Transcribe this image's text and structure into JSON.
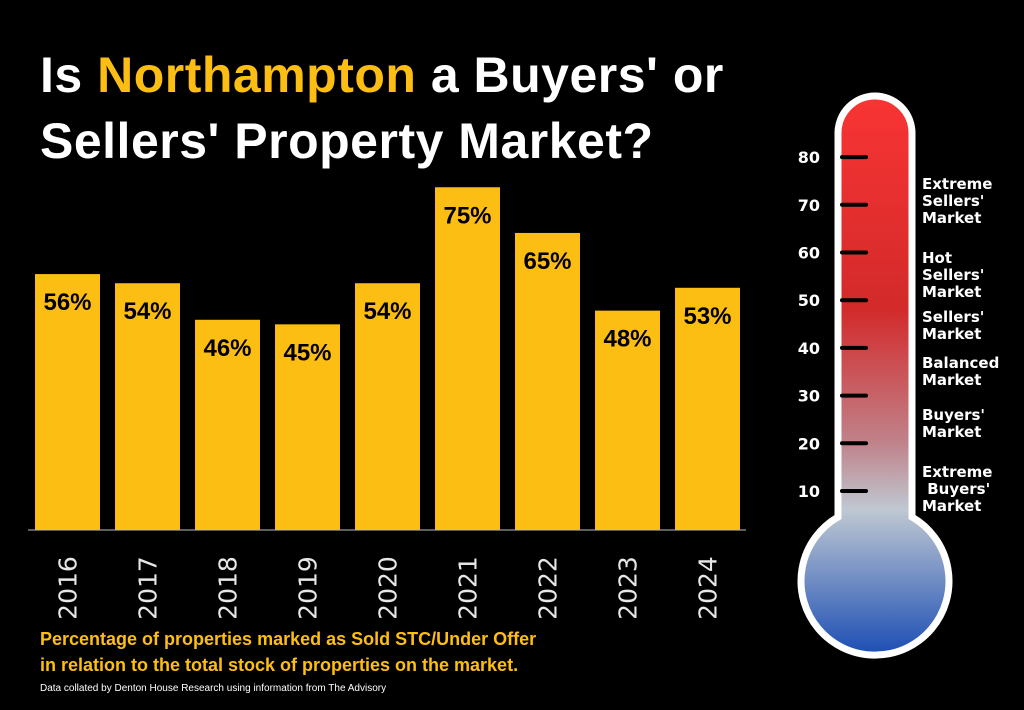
{
  "title": {
    "pre": "Is ",
    "highlight": "Northampton",
    "post1": " a Buyers' or",
    "line2": "Sellers' Property Market?"
  },
  "colors": {
    "bar": "#FDBE13",
    "highlight": "#FDBE13",
    "thermo_top": "#F93434",
    "thermo_mid": "#D32A2A",
    "thermo_light": "#BFC8D2",
    "thermo_bottom": "#1B4DB4"
  },
  "chart_data": {
    "type": "bar",
    "title": "Is Northampton a Buyers' or Sellers' Property Market?",
    "categories": [
      "2016",
      "2017",
      "2018",
      "2019",
      "2020",
      "2021",
      "2022",
      "2023",
      "2024"
    ],
    "values": [
      56,
      54,
      46,
      45,
      54,
      75,
      65,
      48,
      53
    ],
    "data_labels": [
      "56%",
      "54%",
      "46%",
      "45%",
      "54%",
      "75%",
      "65%",
      "48%",
      "53%"
    ],
    "xlabel": "",
    "ylabel": "Percentage of properties marked as Sold STC/Under Offer",
    "ylim": [
      0,
      75
    ],
    "grid": false
  },
  "thermometer": {
    "ticks": [
      "80",
      "70",
      "60",
      "50",
      "40",
      "30",
      "20",
      "10"
    ],
    "tick_values": [
      80,
      70,
      60,
      50,
      40,
      30,
      20,
      10
    ],
    "zones": [
      {
        "label": "Extreme Sellers' Market",
        "lines": [
          "Extreme",
          "Sellers'",
          "Market"
        ]
      },
      {
        "label": "Hot Sellers' Market",
        "lines": [
          "Hot",
          "Sellers'",
          "Market"
        ]
      },
      {
        "label": "Sellers' Market",
        "lines": [
          "Sellers'",
          "Market"
        ]
      },
      {
        "label": "Balanced Market",
        "lines": [
          "Balanced",
          "Market"
        ]
      },
      {
        "label": "Buyers' Market",
        "lines": [
          "Buyers'",
          "Market"
        ]
      },
      {
        "label": "Extreme Buyers' Market",
        "lines": [
          "Extreme",
          " Buyers'",
          "Market"
        ]
      }
    ]
  },
  "caption": {
    "line1": "Percentage of properties marked as Sold STC/Under Offer",
    "line2": "in relation to the total stock of properties on the market."
  },
  "source": "Data collated by Denton House Research using information from The Advisory"
}
